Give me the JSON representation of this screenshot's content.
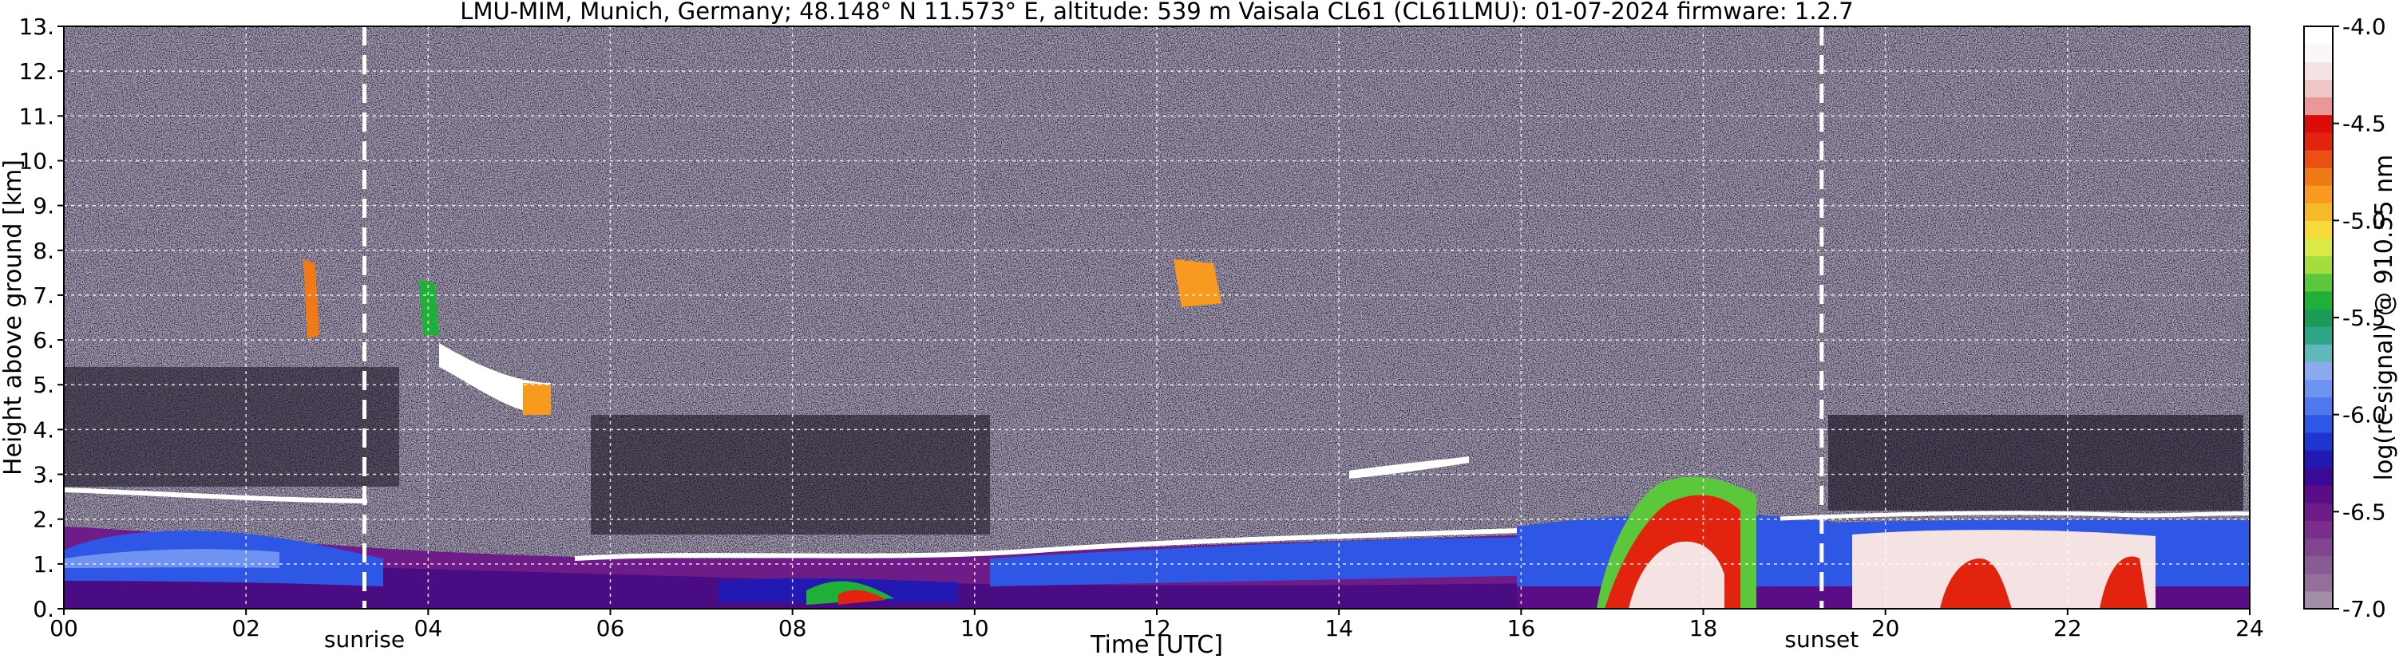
{
  "chart_data": {
    "type": "heatmap",
    "title": "LMU-MIM, Munich, Germany; 48.148° N 11.573° E, altitude: 539 m    Vaisala CL61 (CL61LMU): 01-07-2024    firmware: 1.2.7",
    "xlabel": "Time [UTC]",
    "ylabel": "Height above ground [km]",
    "xlim": [
      0,
      24
    ],
    "ylim": [
      0,
      13
    ],
    "x_ticks": [
      "00",
      "02",
      "04",
      "06",
      "08",
      "10",
      "12",
      "14",
      "16",
      "18",
      "20",
      "22",
      "24"
    ],
    "y_ticks": [
      "0.",
      "1.",
      "2.",
      "3.",
      "4.",
      "5.",
      "6.",
      "7.",
      "8.",
      "9.",
      "10.",
      "11.",
      "12.",
      "13."
    ],
    "grid": true,
    "annotations": [
      {
        "label": "sunrise",
        "x": 3.3
      },
      {
        "label": "sunset",
        "x": 19.3
      }
    ],
    "colorbar": {
      "label": "log(rc-signal) @ 910.55 nm",
      "range": [
        -7.0,
        -4.0
      ],
      "tick_labels": [
        "-7.0",
        "-6.5",
        "-6.0",
        "-5.5",
        "-5.0",
        "-4.5",
        "-4.0"
      ],
      "colors": [
        "#a28ea6",
        "#946f9c",
        "#8a5c97",
        "#82458f",
        "#7a2f8a",
        "#6e1c88",
        "#5a0d86",
        "#3a0a96",
        "#2219b3",
        "#1e35d2",
        "#2e57e6",
        "#4d78ee",
        "#6f93f0",
        "#8cabef",
        "#5fb9bc",
        "#2fa489",
        "#1c9a57",
        "#20b03a",
        "#5ac83a",
        "#a5dd3f",
        "#dbe947",
        "#f5da3a",
        "#f6b92a",
        "#f79a1f",
        "#f07a18",
        "#ea4f14",
        "#e2230e",
        "#dd0a0a",
        "#e89898",
        "#f0c6c6",
        "#f5e2e2",
        "#fbf7f7",
        "#ffffff"
      ]
    },
    "layers": [
      {
        "name": "noise",
        "t0": 0,
        "t1": 24,
        "h0": 0,
        "h1": 13
      },
      {
        "name": "boundary-layer",
        "t0": 0,
        "t1": 16,
        "h0": 0,
        "h1": 1.3
      },
      {
        "name": "convective-layer",
        "t0": 16,
        "t1": 24,
        "h0": 0,
        "h1": 2.6
      }
    ]
  }
}
